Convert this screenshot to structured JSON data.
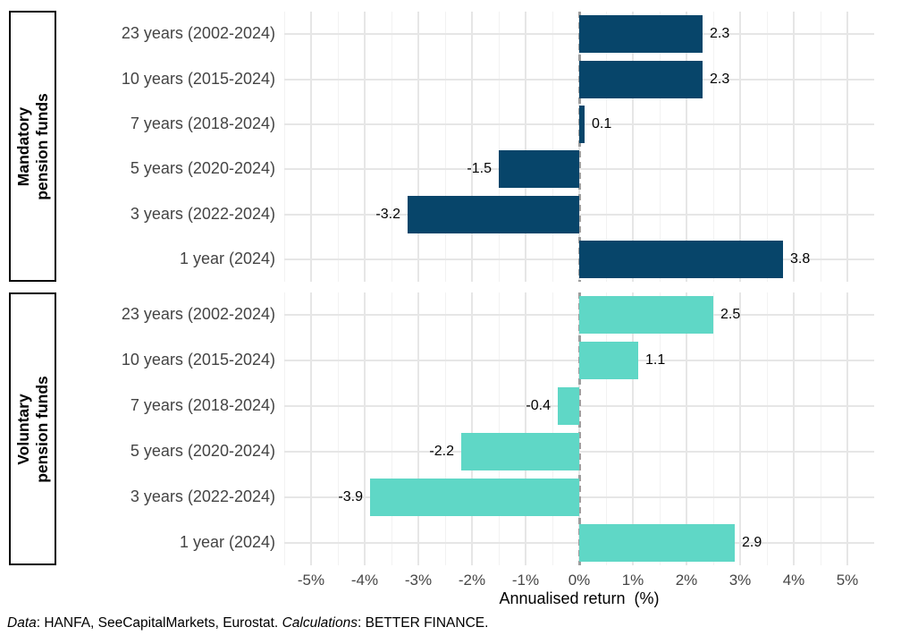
{
  "chart_data": {
    "type": "bar",
    "orientation": "horizontal",
    "title": "",
    "xlabel": "Annualised return  (%)",
    "ylabel": "",
    "xlim": [
      -5.5,
      5.5
    ],
    "x_tick_values": [
      -5,
      -4,
      -3,
      -2,
      -1,
      0,
      1,
      2,
      3,
      4,
      5
    ],
    "x_tick_labels": [
      "-5%",
      "-4%",
      "-3%",
      "-2%",
      "-1%",
      "0%",
      "1%",
      "2%",
      "3%",
      "4%",
      "5%"
    ],
    "categories": [
      "23 years (2002-2024)",
      "10 years (2015-2024)",
      "7 years (2018-2024)",
      "5 years (2020-2024)",
      "3 years (2022-2024)",
      "1 year (2024)"
    ],
    "series": [
      {
        "name": "Mandatory pension funds",
        "name_lines": [
          "Mandatory",
          "pension funds"
        ],
        "color": "#07456A",
        "values": [
          2.3,
          2.3,
          0.1,
          -1.5,
          -3.2,
          3.8
        ],
        "value_labels": [
          "2.3",
          "2.3",
          "0.1",
          "-1.5",
          "-3.2",
          "3.8"
        ]
      },
      {
        "name": "Voluntary pension funds",
        "name_lines": [
          "Voluntary",
          "pension funds"
        ],
        "color": "#5FD7C6",
        "values": [
          2.5,
          1.1,
          -0.4,
          -2.2,
          -3.9,
          2.9
        ],
        "value_labels": [
          "2.5",
          "1.1",
          "-0.4",
          "-2.2",
          "-3.9",
          "2.9"
        ]
      }
    ],
    "legend_position": "none",
    "grid": {
      "major_color": "#E6E6E6",
      "minor_color": "#F2F2F2",
      "horizontal_major": true
    },
    "zero_line": {
      "style": "dashed",
      "color": "#9E9E9E"
    }
  },
  "caption": {
    "parts": [
      {
        "text": "Data",
        "italic": true
      },
      {
        "text": ": HANFA, SeeCapitalMarkets, Eurostat. ",
        "italic": false
      },
      {
        "text": "Calculations",
        "italic": true
      },
      {
        "text": ": BETTER FINANCE.",
        "italic": false
      }
    ]
  }
}
